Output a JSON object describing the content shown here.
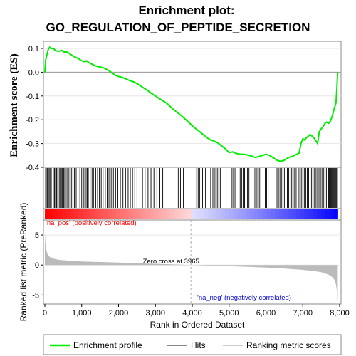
{
  "chart_data": {
    "type": "line",
    "title_line1": "Enrichment plot:",
    "title_line2": "GO_REGULATION_OF_PEPTIDE_SECRETION",
    "es_panel": {
      "ylabel": "Enrichment score (ES)",
      "ylim": [
        -0.4,
        0.13
      ],
      "yticks": [
        "0.1",
        "0.0",
        "-0.1",
        "-0.2",
        "-0.3",
        "-0.4"
      ],
      "ytick_values": [
        0.1,
        0.0,
        -0.1,
        -0.2,
        -0.3,
        -0.4
      ],
      "series": [
        {
          "name": "Enrichment profile",
          "color": "#00ee00",
          "x": [
            0,
            20,
            50,
            90,
            130,
            170,
            230,
            300,
            380,
            460,
            520,
            600,
            700,
            800,
            900,
            1000,
            1060,
            1130,
            1200,
            1300,
            1400,
            1500,
            1600,
            1700,
            1800,
            1900,
            2000,
            2100,
            2200,
            2300,
            2400,
            2500,
            2600,
            2700,
            2800,
            2900,
            3000,
            3100,
            3200,
            3300,
            3400,
            3500,
            3600,
            3700,
            3800,
            3900,
            4000,
            4100,
            4200,
            4300,
            4400,
            4500,
            4600,
            4700,
            4800,
            4900,
            5000,
            5100,
            5200,
            5300,
            5400,
            5500,
            5600,
            5700,
            5800,
            5900,
            6000,
            6100,
            6200,
            6300,
            6400,
            6500,
            6600,
            6700,
            6800,
            6900,
            6950,
            7000,
            7050,
            7100,
            7200,
            7300,
            7400,
            7450,
            7500,
            7550,
            7600,
            7650,
            7700,
            7750,
            7800,
            7850,
            7880,
            7900,
            7920,
            7940,
            7950
          ],
          "y": [
            0.0,
            0.05,
            0.07,
            0.095,
            0.105,
            0.1,
            0.1,
            0.09,
            0.088,
            0.092,
            0.085,
            0.085,
            0.075,
            0.065,
            0.058,
            0.048,
            0.045,
            0.048,
            0.04,
            0.032,
            0.025,
            0.022,
            0.018,
            0.01,
            0.0,
            -0.012,
            -0.018,
            -0.022,
            -0.028,
            -0.035,
            -0.04,
            -0.048,
            -0.058,
            -0.068,
            -0.078,
            -0.09,
            -0.1,
            -0.11,
            -0.12,
            -0.13,
            -0.143,
            -0.158,
            -0.17,
            -0.182,
            -0.196,
            -0.21,
            -0.225,
            -0.238,
            -0.25,
            -0.263,
            -0.275,
            -0.285,
            -0.29,
            -0.298,
            -0.31,
            -0.322,
            -0.338,
            -0.335,
            -0.342,
            -0.345,
            -0.345,
            -0.348,
            -0.352,
            -0.358,
            -0.355,
            -0.35,
            -0.345,
            -0.35,
            -0.36,
            -0.37,
            -0.375,
            -0.37,
            -0.36,
            -0.355,
            -0.348,
            -0.34,
            -0.3,
            -0.28,
            -0.285,
            -0.275,
            -0.262,
            -0.275,
            -0.3,
            -0.25,
            -0.238,
            -0.23,
            -0.215,
            -0.21,
            -0.215,
            -0.205,
            -0.185,
            -0.155,
            -0.14,
            -0.13,
            -0.08,
            -0.02,
            0.0
          ]
        }
      ]
    },
    "hits_panel": {
      "label": "Hits",
      "hit_ranks": [
        20,
        40,
        70,
        95,
        120,
        150,
        175,
        230,
        260,
        290,
        320,
        350,
        390,
        420,
        460,
        480,
        510,
        540,
        570,
        600,
        640,
        680,
        720,
        760,
        800,
        850,
        900,
        950,
        1000,
        1060,
        1120,
        1150,
        1180,
        1230,
        1280,
        1320,
        1380,
        1430,
        1480,
        1530,
        1580,
        1640,
        1690,
        1740,
        1800,
        1860,
        1920,
        1980,
        2050,
        2120,
        2190,
        2260,
        2320,
        2380,
        2440,
        2500,
        2580,
        2650,
        2720,
        2800,
        2880,
        2960,
        3040,
        3120,
        3200,
        3620,
        3680,
        3720,
        3760,
        4120,
        4160,
        4200,
        4240,
        4280,
        4320,
        4360,
        4500,
        4560,
        4600,
        4640,
        4680,
        4720,
        4760,
        5080,
        5120,
        5160,
        5300,
        5340,
        5380,
        5420,
        5460,
        5500,
        5540,
        5700,
        5740,
        5780,
        5820,
        5860,
        5980,
        6020,
        6060,
        6300,
        6340,
        6380,
        6420,
        6460,
        6500,
        6540,
        6580,
        6620,
        6660,
        6700,
        6740,
        6780,
        6820,
        6880,
        6920,
        6960,
        7000,
        7040,
        7080,
        7120,
        7160,
        7200,
        7240,
        7280,
        7320,
        7360,
        7400,
        7440,
        7480,
        7520,
        7560,
        7600,
        7640,
        7680,
        7700,
        7720,
        7740,
        7760,
        7780,
        7800,
        7820,
        7840,
        7860,
        7880,
        7900,
        7920,
        7940
      ]
    },
    "colorbar": {
      "pos_label": "'na_pos' (positively correlated)",
      "neg_label": "'na_neg' (negatively correlated)",
      "pos_color": "#ff0000",
      "neg_color": "#0000ff"
    },
    "metric_panel": {
      "ylabel": "Ranked list metric (PreRanked)",
      "ylim": [
        -6.5,
        7.5
      ],
      "yticks": [
        "5",
        "0",
        "-5"
      ],
      "ytick_values": [
        5,
        0,
        -5
      ],
      "zero_cross_label": "Zero cross at 3965",
      "zero_cross": 3965,
      "fill_color": "#bbbbbb",
      "profile_x": [
        0,
        10,
        30,
        60,
        100,
        200,
        400,
        700,
        1000,
        1500,
        2000,
        2500,
        3000,
        3500,
        3965,
        4500,
        5000,
        5500,
        6000,
        6500,
        7000,
        7300,
        7500,
        7700,
        7800,
        7860,
        7900,
        7930,
        7950
      ],
      "profile_y": [
        5.5,
        4.0,
        2.8,
        2.0,
        1.5,
        1.1,
        0.85,
        0.7,
        0.6,
        0.5,
        0.4,
        0.3,
        0.2,
        0.1,
        0.0,
        -0.1,
        -0.2,
        -0.3,
        -0.42,
        -0.58,
        -0.8,
        -1.0,
        -1.2,
        -1.6,
        -2.0,
        -2.5,
        -3.2,
        -4.5,
        -6.0
      ]
    },
    "xaxis": {
      "xlabel": "Rank in Ordered Dataset",
      "xlim": [
        0,
        8000
      ],
      "xtick_values": [
        0,
        1000,
        2000,
        3000,
        4000,
        5000,
        6000,
        7000,
        8000
      ],
      "xticks": [
        "0",
        "1,000",
        "2,000",
        "3,000",
        "4,000",
        "5,000",
        "6,000",
        "7,000",
        "8,000"
      ]
    },
    "legend": {
      "items": [
        {
          "label": "Enrichment profile",
          "color": "#00ee00"
        },
        {
          "label": "Hits",
          "color": "#888888"
        },
        {
          "label": "Ranking metric scores",
          "color": "#cccccc"
        }
      ]
    }
  }
}
